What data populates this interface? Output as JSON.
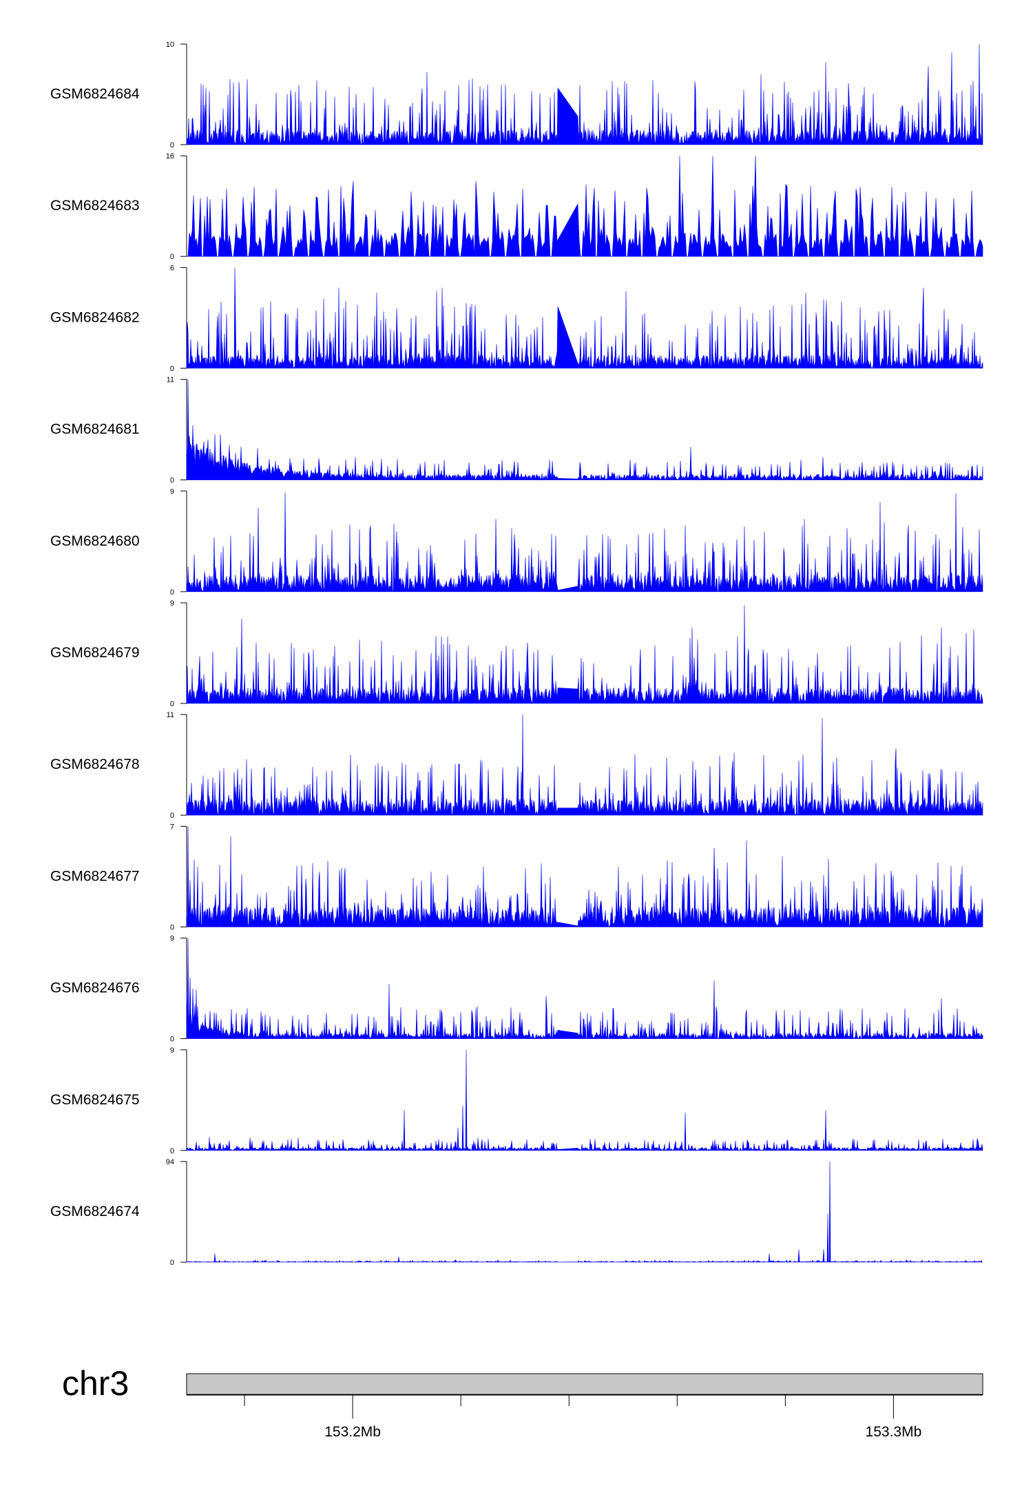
{
  "chart_data": {
    "type": "area",
    "series_color": "#0000FF",
    "axis_color": "#000000",
    "chromosome": {
      "label": "chr3",
      "bar_color": "#C8C8C8",
      "x_range_mb": [
        153.1693,
        153.3165
      ],
      "tick_labels": [
        {
          "label": "153.2Mb",
          "value_mb": 153.2
        },
        {
          "label": "153.3Mb",
          "value_mb": 153.3
        }
      ],
      "minor_ticks_mb": [
        153.18,
        153.22,
        153.24,
        153.26,
        153.28
      ]
    },
    "gap_mb": [
      153.238,
      153.2415
    ],
    "tracks": [
      {
        "name": "GSM6824684",
        "ymax": 10,
        "ymin": 0,
        "baseline": 1.5,
        "amp": 5.5,
        "spikes": [
          [
            153.1805,
            6.5
          ],
          [
            153.2138,
            7.2
          ],
          [
            153.225,
            6.0
          ],
          [
            153.2755,
            7.0
          ],
          [
            153.2875,
            8.2
          ],
          [
            153.3065,
            7.8
          ],
          [
            153.3108,
            9.2
          ],
          [
            153.3158,
            10.0
          ]
        ]
      },
      {
        "name": "GSM6824683",
        "ymax": 16,
        "ymin": 0,
        "baseline": 2.5,
        "amp": 9.0,
        "spikes": [
          [
            153.2,
            12.0
          ],
          [
            153.2228,
            12.0
          ],
          [
            153.2605,
            16.0
          ],
          [
            153.2665,
            16.0
          ],
          [
            153.2745,
            16.0
          ]
        ]
      },
      {
        "name": "GSM6824682",
        "ymax": 6,
        "ymin": 0,
        "baseline": 0.8,
        "amp": 3.6,
        "spikes": [
          [
            153.1782,
            6.0
          ],
          [
            153.1975,
            4.8
          ],
          [
            153.2045,
            4.5
          ],
          [
            153.2155,
            4.6
          ],
          [
            153.2165,
            4.8
          ],
          [
            153.2505,
            4.6
          ],
          [
            153.2838,
            4.5
          ],
          [
            153.3055,
            4.8
          ]
        ]
      },
      {
        "name": "GSM6824681",
        "ymax": 11,
        "ymin": 0,
        "baseline": 0.6,
        "amp": 1.8,
        "spikes": [
          [
            153.1695,
            11.0
          ],
          [
            153.1705,
            6.0
          ],
          [
            153.1725,
            4.2
          ],
          [
            153.1745,
            5.0
          ],
          [
            153.1755,
            5.0
          ],
          [
            153.1772,
            3.8
          ],
          [
            153.2625,
            3.6
          ],
          [
            153.287,
            2.5
          ]
        ],
        "decay": {
          "amp": 3.2,
          "length_mb": 0.011
        }
      },
      {
        "name": "GSM6824680",
        "ymax": 9,
        "ymin": 0,
        "baseline": 1.5,
        "amp": 5.0,
        "spikes": [
          [
            153.1875,
            8.9
          ],
          [
            153.1825,
            7.5
          ],
          [
            153.1995,
            6.0
          ],
          [
            153.2265,
            6.5
          ],
          [
            153.2835,
            6.5
          ],
          [
            153.2975,
            8.0
          ],
          [
            153.3115,
            8.8
          ]
        ]
      },
      {
        "name": "GSM6824679",
        "ymax": 9,
        "ymin": 0,
        "baseline": 1.4,
        "amp": 5.0,
        "spikes": [
          [
            153.1795,
            7.6
          ],
          [
            153.2725,
            8.8
          ],
          [
            153.2712,
            6.0
          ],
          [
            153.2628,
            6.8
          ],
          [
            153.3148,
            6.6
          ],
          [
            153.3088,
            6.8
          ]
        ]
      },
      {
        "name": "GSM6824678",
        "ymax": 11,
        "ymin": 0,
        "baseline": 1.8,
        "amp": 5.5,
        "spikes": [
          [
            153.2315,
            11.0
          ],
          [
            153.2868,
            10.6
          ],
          [
            153.2705,
            6.8
          ],
          [
            153.2895,
            6.3
          ],
          [
            153.3005,
            7.3
          ]
        ]
      },
      {
        "name": "GSM6824677",
        "ymax": 7,
        "ymin": 0,
        "baseline": 1.4,
        "amp": 3.6,
        "spikes": [
          [
            153.1695,
            7.0
          ],
          [
            153.1775,
            6.3
          ],
          [
            153.2728,
            6.0
          ],
          [
            153.2668,
            5.5
          ],
          [
            153.2795,
            4.9
          ]
        ]
      },
      {
        "name": "GSM6824676",
        "ymax": 9,
        "ymin": 0,
        "baseline": 0.5,
        "amp": 2.5,
        "spikes": [
          [
            153.1695,
            9.0
          ],
          [
            153.17,
            5.5
          ],
          [
            153.2068,
            4.9
          ],
          [
            153.2358,
            3.8
          ],
          [
            153.2668,
            5.2
          ],
          [
            153.3088,
            3.6
          ]
        ],
        "decay": {
          "amp": 2.0,
          "length_mb": 0.004
        }
      },
      {
        "name": "GSM6824675",
        "ymax": 9,
        "ymin": 0,
        "baseline": 0.25,
        "amp": 0.9,
        "spikes": [
          [
            153.221,
            9.0
          ],
          [
            153.2204,
            4.0
          ],
          [
            153.2195,
            2.0
          ],
          [
            153.2095,
            3.6
          ],
          [
            153.2615,
            3.4
          ],
          [
            153.2875,
            3.6
          ],
          [
            153.1735,
            1.2
          ]
        ]
      },
      {
        "name": "GSM6824674",
        "ymax": 94,
        "ymin": 0,
        "baseline": 0.6,
        "amp": 1.6,
        "spikes": [
          [
            153.2882,
            94.0
          ],
          [
            153.2878,
            45.0
          ],
          [
            153.2871,
            12.0
          ],
          [
            153.2825,
            12.0
          ],
          [
            153.277,
            8.0
          ],
          [
            153.1745,
            8.0
          ],
          [
            153.2085,
            5.0
          ]
        ]
      }
    ]
  }
}
